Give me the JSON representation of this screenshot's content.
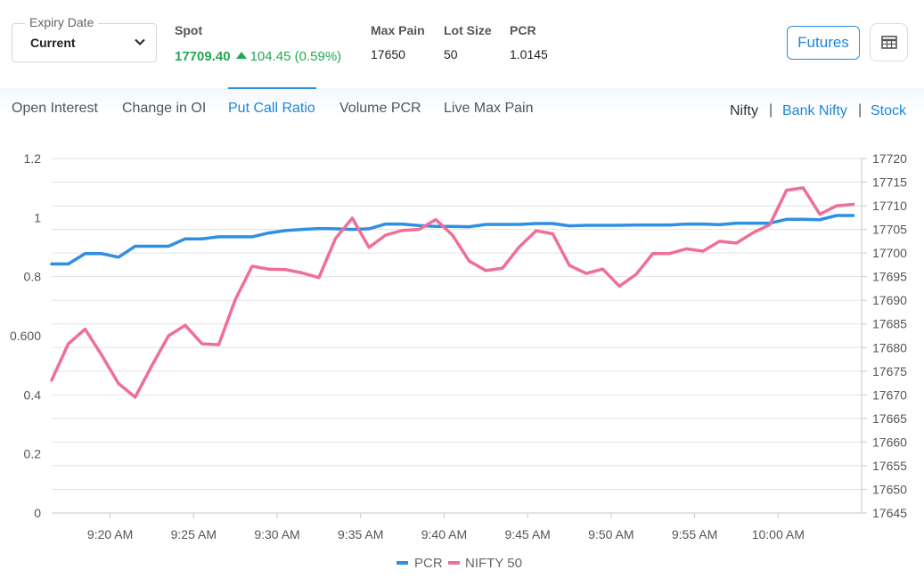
{
  "header": {
    "expiry": {
      "label": "Expiry Date",
      "value": "Current"
    },
    "spot": {
      "label": "Spot",
      "price": "17709.40",
      "change": "104.45 (0.59%)",
      "direction_icon": "triangle-up-icon",
      "color": "#22a952"
    },
    "max_pain": {
      "label": "Max Pain",
      "value": "17650"
    },
    "lot_size": {
      "label": "Lot Size",
      "value": "50"
    },
    "pcr": {
      "label": "PCR",
      "value": "1.0145"
    },
    "futures_button": "Futures",
    "table_icon": "table-icon"
  },
  "tabs": [
    {
      "label": "Open Interest",
      "active": false
    },
    {
      "label": "Change in OI",
      "active": false
    },
    {
      "label": "Put Call Ratio",
      "active": true
    },
    {
      "label": "Volume PCR",
      "active": false
    },
    {
      "label": "Live Max Pain",
      "active": false
    }
  ],
  "index_switch": {
    "items": [
      "Nifty",
      "Bank Nifty",
      "Stock"
    ],
    "selected": "Nifty",
    "separator": "|"
  },
  "colors": {
    "accent": "#1b86db",
    "pcr": "#2f8fe3",
    "nifty": "#ef6f96",
    "positive": "#22a952"
  },
  "chart_data": {
    "type": "line",
    "title": "",
    "x_ticks": [
      "9:20 AM",
      "9:25 AM",
      "9:30 AM",
      "9:35 AM",
      "9:40 AM",
      "9:45 AM",
      "9:50 AM",
      "9:55 AM",
      "10:00 AM"
    ],
    "x_range_minutes": [
      9.5,
      58.0
    ],
    "x_tick_minutes": [
      13,
      18,
      23,
      28,
      33,
      38,
      43,
      48,
      53
    ],
    "left_axis": {
      "ticks": [
        "0",
        "0.2",
        "0.4",
        "0.600",
        "0.8",
        "1",
        "1.2"
      ],
      "tick_values": [
        0,
        0.2,
        0.4,
        0.6,
        0.8,
        1.0,
        1.2
      ],
      "range": [
        0,
        1.2
      ]
    },
    "right_axis": {
      "range": [
        17645,
        17720
      ],
      "tick_values": [
        17645,
        17650,
        17655,
        17660,
        17665,
        17670,
        17675,
        17680,
        17685,
        17690,
        17695,
        17700,
        17705,
        17710,
        17715,
        17720
      ]
    },
    "legend_position": "bottom-center",
    "grid": true,
    "series": [
      {
        "name": "PCR",
        "axis": "left",
        "color": "#2f8fe3",
        "x": [
          9.5,
          10.5,
          11.5,
          12.5,
          13.5,
          14.5,
          15.5,
          16.5,
          17.5,
          18.5,
          19.5,
          20.5,
          21.5,
          22.5,
          23.5,
          24.5,
          25.5,
          26.5,
          27.5,
          28.5,
          29.5,
          30.5,
          31.5,
          32.5,
          33.5,
          34.5,
          35.5,
          36.5,
          37.5,
          38.5,
          39.5,
          40.5,
          41.5,
          42.5,
          43.5,
          44.5,
          45.5,
          46.5,
          47.5,
          48.5,
          49.5,
          50.5,
          51.5,
          52.5,
          53.5,
          54.5,
          55.5,
          56.5,
          57.5
        ],
        "values": [
          0.843,
          0.843,
          0.878,
          0.878,
          0.866,
          0.903,
          0.903,
          0.903,
          0.928,
          0.928,
          0.935,
          0.935,
          0.935,
          0.948,
          0.956,
          0.96,
          0.963,
          0.962,
          0.96,
          0.962,
          0.978,
          0.978,
          0.973,
          0.97,
          0.97,
          0.969,
          0.977,
          0.977,
          0.977,
          0.98,
          0.98,
          0.972,
          0.974,
          0.974,
          0.974,
          0.975,
          0.975,
          0.975,
          0.978,
          0.978,
          0.976,
          0.981,
          0.981,
          0.981,
          0.994,
          0.994,
          0.993,
          1.007,
          1.007
        ]
      },
      {
        "name": "NIFTY 50",
        "axis": "right",
        "color": "#ef6f96",
        "x": [
          9.5,
          10.5,
          11.5,
          12.5,
          13.5,
          14.5,
          15.5,
          16.5,
          17.5,
          18.5,
          19.5,
          20.5,
          21.5,
          22.5,
          23.5,
          24.5,
          25.5,
          26.5,
          27.5,
          28.5,
          29.5,
          30.5,
          31.5,
          32.5,
          33.5,
          34.5,
          35.5,
          36.5,
          37.5,
          38.5,
          39.5,
          40.5,
          41.5,
          42.5,
          43.5,
          44.5,
          45.5,
          46.5,
          47.5,
          48.5,
          49.5,
          50.5,
          51.5,
          52.5,
          53.5,
          54.5,
          55.5,
          56.5,
          57.5
        ],
        "values": [
          17673.1,
          17680.8,
          17683.9,
          17678.4,
          17672.4,
          17669.5,
          17676.2,
          17682.5,
          17684.7,
          17680.8,
          17680.6,
          17690.2,
          17697.2,
          17696.6,
          17696.5,
          17695.8,
          17694.8,
          17703.1,
          17707.4,
          17701.2,
          17703.8,
          17704.8,
          17705.0,
          17707.1,
          17703.8,
          17698.3,
          17696.3,
          17696.8,
          17701.3,
          17704.7,
          17704.1,
          17697.4,
          17695.7,
          17696.6,
          17693.0,
          17695.5,
          17699.9,
          17699.9,
          17700.9,
          17700.4,
          17702.5,
          17702.1,
          17704.3,
          17706.0,
          17713.3,
          17713.8,
          17708.2,
          17710.0,
          17710.3
        ]
      }
    ]
  }
}
